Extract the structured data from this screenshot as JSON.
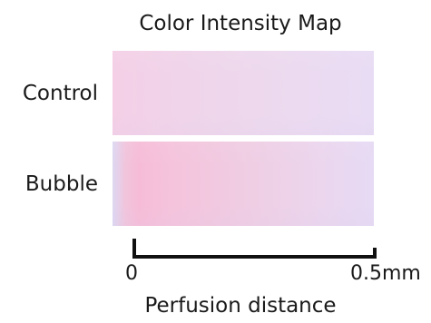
{
  "chart_data": {
    "type": "heatmap",
    "title": "Color Intensity Map",
    "rows": [
      "Control",
      "Bubble"
    ],
    "xlabel": "Perfusion distance",
    "x_ticks": [
      "0",
      "0.5mm"
    ],
    "xlim": [
      0,
      0.5
    ],
    "x_unit": "mm",
    "colors": {
      "control_strip": [
        "#f4cfe6",
        "#ecdaf0",
        "#e8dcf4"
      ],
      "bubble_strip": [
        "#ddd8f2",
        "#f6bcd7",
        "#eed0e6",
        "#e6daf4"
      ],
      "scale_bar": "#111111"
    }
  }
}
